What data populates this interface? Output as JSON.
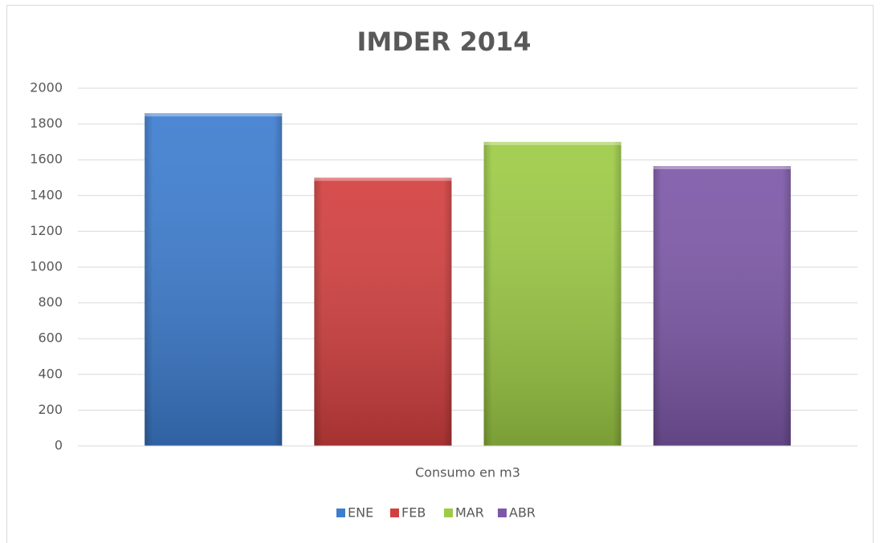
{
  "chart_data": {
    "type": "bar",
    "title": "IMDER 2014",
    "categories": [
      "Consumo en m3"
    ],
    "series": [
      {
        "name": "ENE",
        "color": "#3d7dd0",
        "values": [
          1860
        ]
      },
      {
        "name": "FEB",
        "color": "#d33f3f",
        "values": [
          1500
        ]
      },
      {
        "name": "MAR",
        "color": "#9dcb45",
        "values": [
          1700
        ]
      },
      {
        "name": "ABR",
        "color": "#7d58a8",
        "values": [
          1565
        ]
      }
    ],
    "ylim": [
      0,
      2000
    ],
    "yticks": [
      0,
      200,
      400,
      600,
      800,
      1000,
      1200,
      1400,
      1600,
      1800,
      2000
    ],
    "grid": true,
    "legend": "bottom"
  }
}
